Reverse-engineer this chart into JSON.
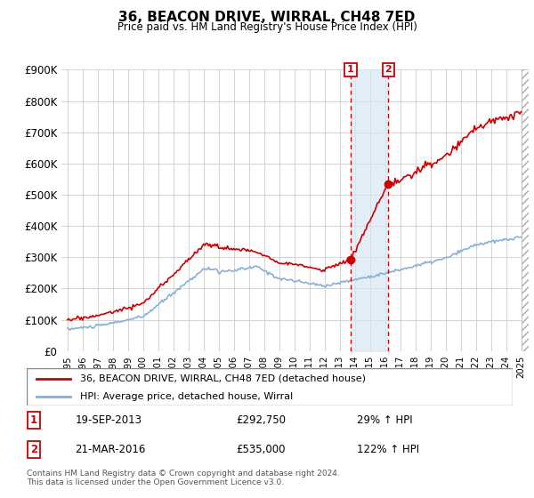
{
  "title": "36, BEACON DRIVE, WIRRAL, CH48 7ED",
  "subtitle": "Price paid vs. HM Land Registry's House Price Index (HPI)",
  "legend_line1": "36, BEACON DRIVE, WIRRAL, CH48 7ED (detached house)",
  "legend_line2": "HPI: Average price, detached house, Wirral",
  "sale1_date": "19-SEP-2013",
  "sale1_price": 292750,
  "sale2_date": "21-MAR-2016",
  "sale2_price": 535000,
  "sale1_pct": "29% ↑ HPI",
  "sale2_pct": "122% ↑ HPI",
  "footer1": "Contains HM Land Registry data © Crown copyright and database right 2024.",
  "footer2": "This data is licensed under the Open Government Licence v3.0.",
  "ylim": [
    0,
    900000
  ],
  "yticks": [
    0,
    100000,
    200000,
    300000,
    400000,
    500000,
    600000,
    700000,
    800000,
    900000
  ],
  "ytick_labels": [
    "£0",
    "£100K",
    "£200K",
    "£300K",
    "£400K",
    "£500K",
    "£600K",
    "£700K",
    "£800K",
    "£900K"
  ],
  "hpi_color": "#88b0d8",
  "house_color": "#cc0000",
  "shade_color": "#d8e8f4",
  "sale1_x": 2013.72,
  "sale2_x": 2016.22,
  "xmin": 1995,
  "xmax": 2025
}
